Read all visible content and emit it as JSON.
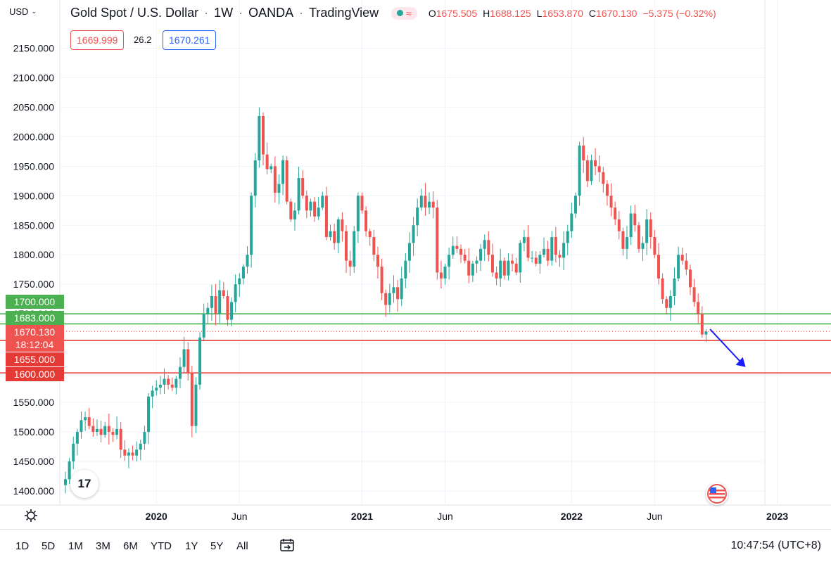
{
  "header": {
    "currency": "USD",
    "title": "Gold Spot / U.S. Dollar",
    "interval": "1W",
    "broker": "OANDA",
    "platform": "TradingView",
    "o_label": "O",
    "o_value": "1675.505",
    "h_label": "H",
    "h_value": "1688.125",
    "l_label": "L",
    "l_value": "1653.870",
    "c_label": "C",
    "c_value": "1670.130",
    "change": "−5.375 (−0.32%)",
    "bid": "1669.999",
    "spread": "26.2",
    "ask": "1670.261"
  },
  "bottom": {
    "ranges": [
      "1D",
      "5D",
      "1M",
      "3M",
      "6M",
      "YTD",
      "1Y",
      "5Y",
      "All"
    ],
    "clock": "10:47:54 (UTC+8)"
  },
  "brand": {
    "logo_text": "17"
  },
  "colors": {
    "up": "#26a69a",
    "down": "#ef5350",
    "green_line": "#4caf50",
    "red_line": "#e53935",
    "arrow": "#1a1aff"
  },
  "chart_data": {
    "type": "candlestick",
    "ylim": [
      1390,
      2210
    ],
    "y_ticks": [
      "2150.000",
      "2100.000",
      "2050.000",
      "2000.000",
      "1950.000",
      "1900.000",
      "1850.000",
      "1800.000",
      "1750.000",
      "1700.000",
      "1650.000",
      "1600.000",
      "1550.000",
      "1500.000",
      "1450.000",
      "1400.000"
    ],
    "x_labels": [
      {
        "t": 23,
        "label": "2020"
      },
      {
        "t": 44,
        "label": "Jun"
      },
      {
        "t": 75,
        "label": "2021"
      },
      {
        "t": 96,
        "label": "Jun"
      },
      {
        "t": 128,
        "label": "2022"
      },
      {
        "t": 149,
        "label": "Jun"
      },
      {
        "t": 180,
        "label": "2023"
      }
    ],
    "levels": [
      {
        "value": 1700.0,
        "label": "1700.000",
        "color": "#4caf50"
      },
      {
        "value": 1683.0,
        "label": "1683.000",
        "color": "#4caf50"
      },
      {
        "value": 1655.0,
        "label": "1655.000",
        "color": "#e53935"
      },
      {
        "value": 1600.0,
        "label": "1600.000",
        "color": "#e53935"
      }
    ],
    "last_price": {
      "value": 1670.13,
      "label": "1670.130",
      "countdown": "18:12:04"
    },
    "arrow": {
      "from": [
        163,
        1674
      ],
      "to": [
        172,
        1610
      ]
    },
    "closes": [
      1420,
      1450,
      1480,
      1500,
      1520,
      1525,
      1510,
      1500,
      1505,
      1495,
      1510,
      1500,
      1495,
      1505,
      1470,
      1460,
      1465,
      1460,
      1470,
      1480,
      1500,
      1560,
      1570,
      1575,
      1580,
      1590,
      1580,
      1575,
      1590,
      1610,
      1640,
      1600,
      1510,
      1580,
      1660,
      1700,
      1710,
      1730,
      1700,
      1740,
      1730,
      1690,
      1720,
      1750,
      1760,
      1780,
      1800,
      1900,
      1960,
      2035,
      1970,
      1945,
      1950,
      1905,
      1920,
      1960,
      1890,
      1860,
      1875,
      1930,
      1900,
      1875,
      1890,
      1865,
      1880,
      1900,
      1830,
      1840,
      1820,
      1860,
      1840,
      1790,
      1780,
      1840,
      1900,
      1875,
      1840,
      1830,
      1800,
      1780,
      1735,
      1715,
      1735,
      1745,
      1725,
      1760,
      1790,
      1820,
      1850,
      1880,
      1900,
      1880,
      1890,
      1880,
      1770,
      1760,
      1780,
      1800,
      1815,
      1810,
      1800,
      1790,
      1765,
      1785,
      1790,
      1810,
      1825,
      1800,
      1770,
      1760,
      1790,
      1765,
      1790,
      1785,
      1770,
      1820,
      1830,
      1795,
      1795,
      1785,
      1800,
      1810,
      1790,
      1830,
      1800,
      1795,
      1820,
      1840,
      1870,
      1900,
      1985,
      1960,
      1925,
      1960,
      1950,
      1940,
      1920,
      1900,
      1880,
      1860,
      1840,
      1810,
      1830,
      1870,
      1850,
      1810,
      1820,
      1860,
      1830,
      1800,
      1760,
      1725,
      1710,
      1730,
      1760,
      1800,
      1790,
      1775,
      1745,
      1720,
      1700,
      1665,
      1670
    ]
  }
}
